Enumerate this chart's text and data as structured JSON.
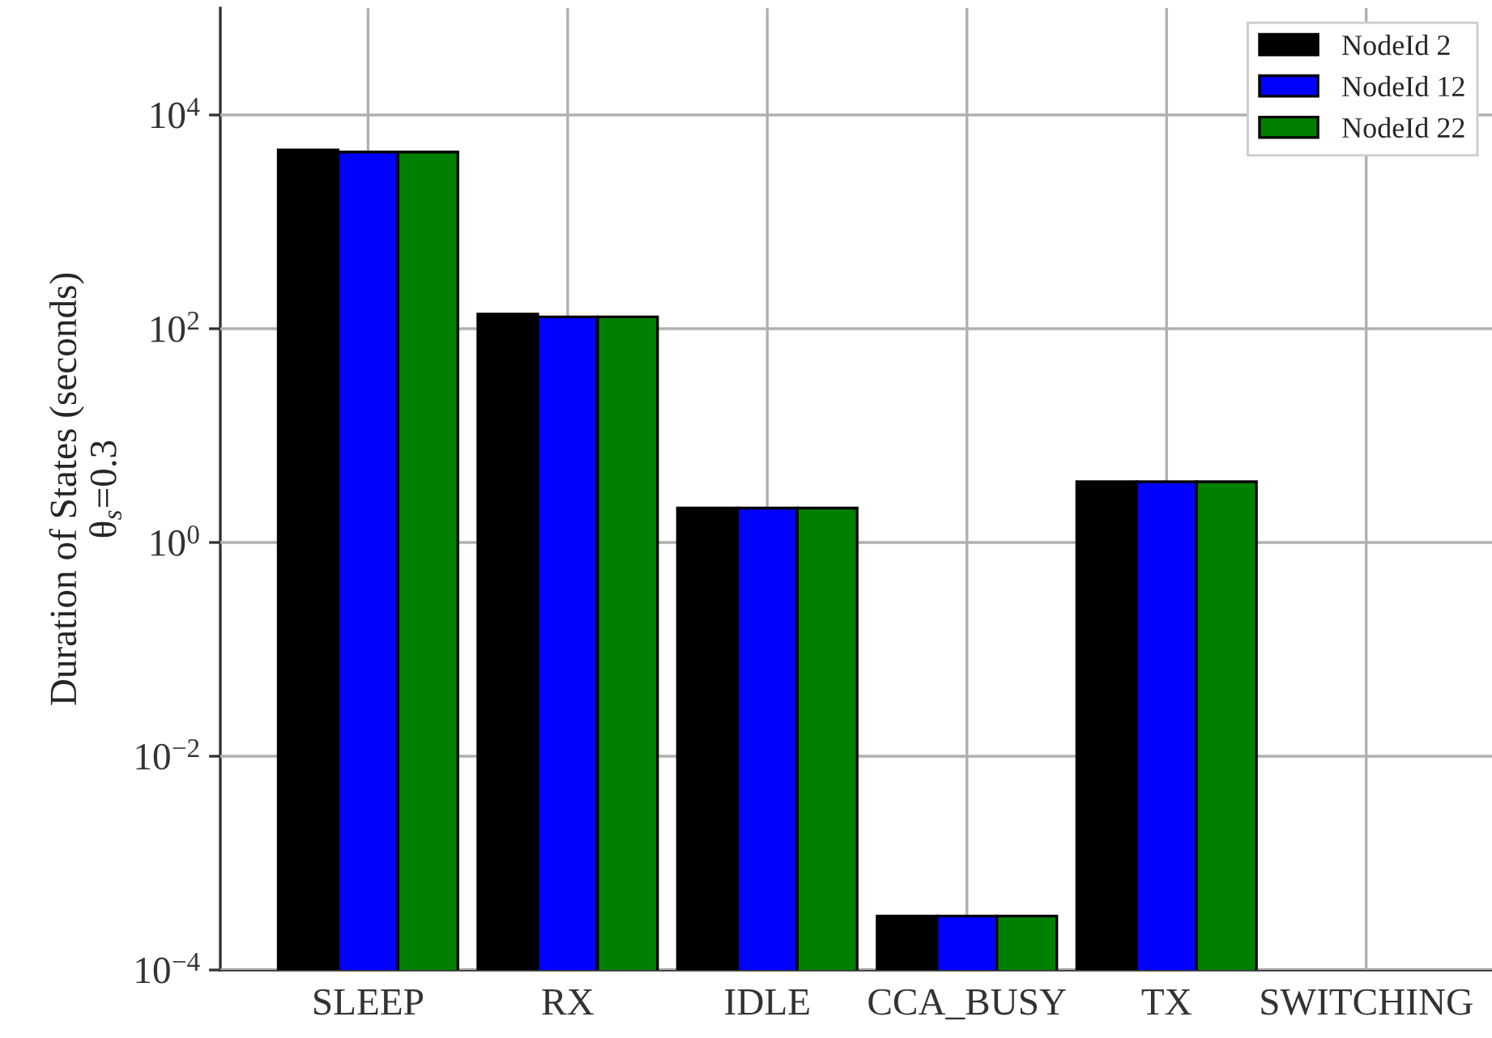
{
  "chart_data": {
    "type": "bar",
    "ylabel": "Duration of States (seconds)\nθ$_{s}$=0.3",
    "categories": [
      "SLEEP",
      "RX",
      "IDLE",
      "CCA_BUSY",
      "TX",
      "SWITCHING"
    ],
    "series": [
      {
        "name": "NodeId 2",
        "color": "#000000",
        "values": [
          4700,
          137,
          2.1,
          0.00032,
          3.7,
          null
        ]
      },
      {
        "name": "NodeId 12",
        "color": "#0000ff",
        "values": [
          4500,
          129,
          2.1,
          0.00032,
          3.7,
          null
        ]
      },
      {
        "name": "NodeId 22",
        "color": "#008000",
        "values": [
          4500,
          129,
          2.1,
          0.00032,
          3.7,
          null
        ]
      }
    ],
    "log": "y",
    "ylim": [
      0.0001,
      100000
    ],
    "yticks": [
      {
        "value": 0.0001,
        "label": "10$^{−4}$"
      },
      {
        "value": 0.01,
        "label": "10$^{−2}$"
      },
      {
        "value": 1,
        "label": "10$^{0}$"
      },
      {
        "value": 100,
        "label": "10$^{2}$"
      },
      {
        "value": 10000,
        "label": "10$^{4}$"
      }
    ],
    "grid": true,
    "legend": "top right"
  }
}
